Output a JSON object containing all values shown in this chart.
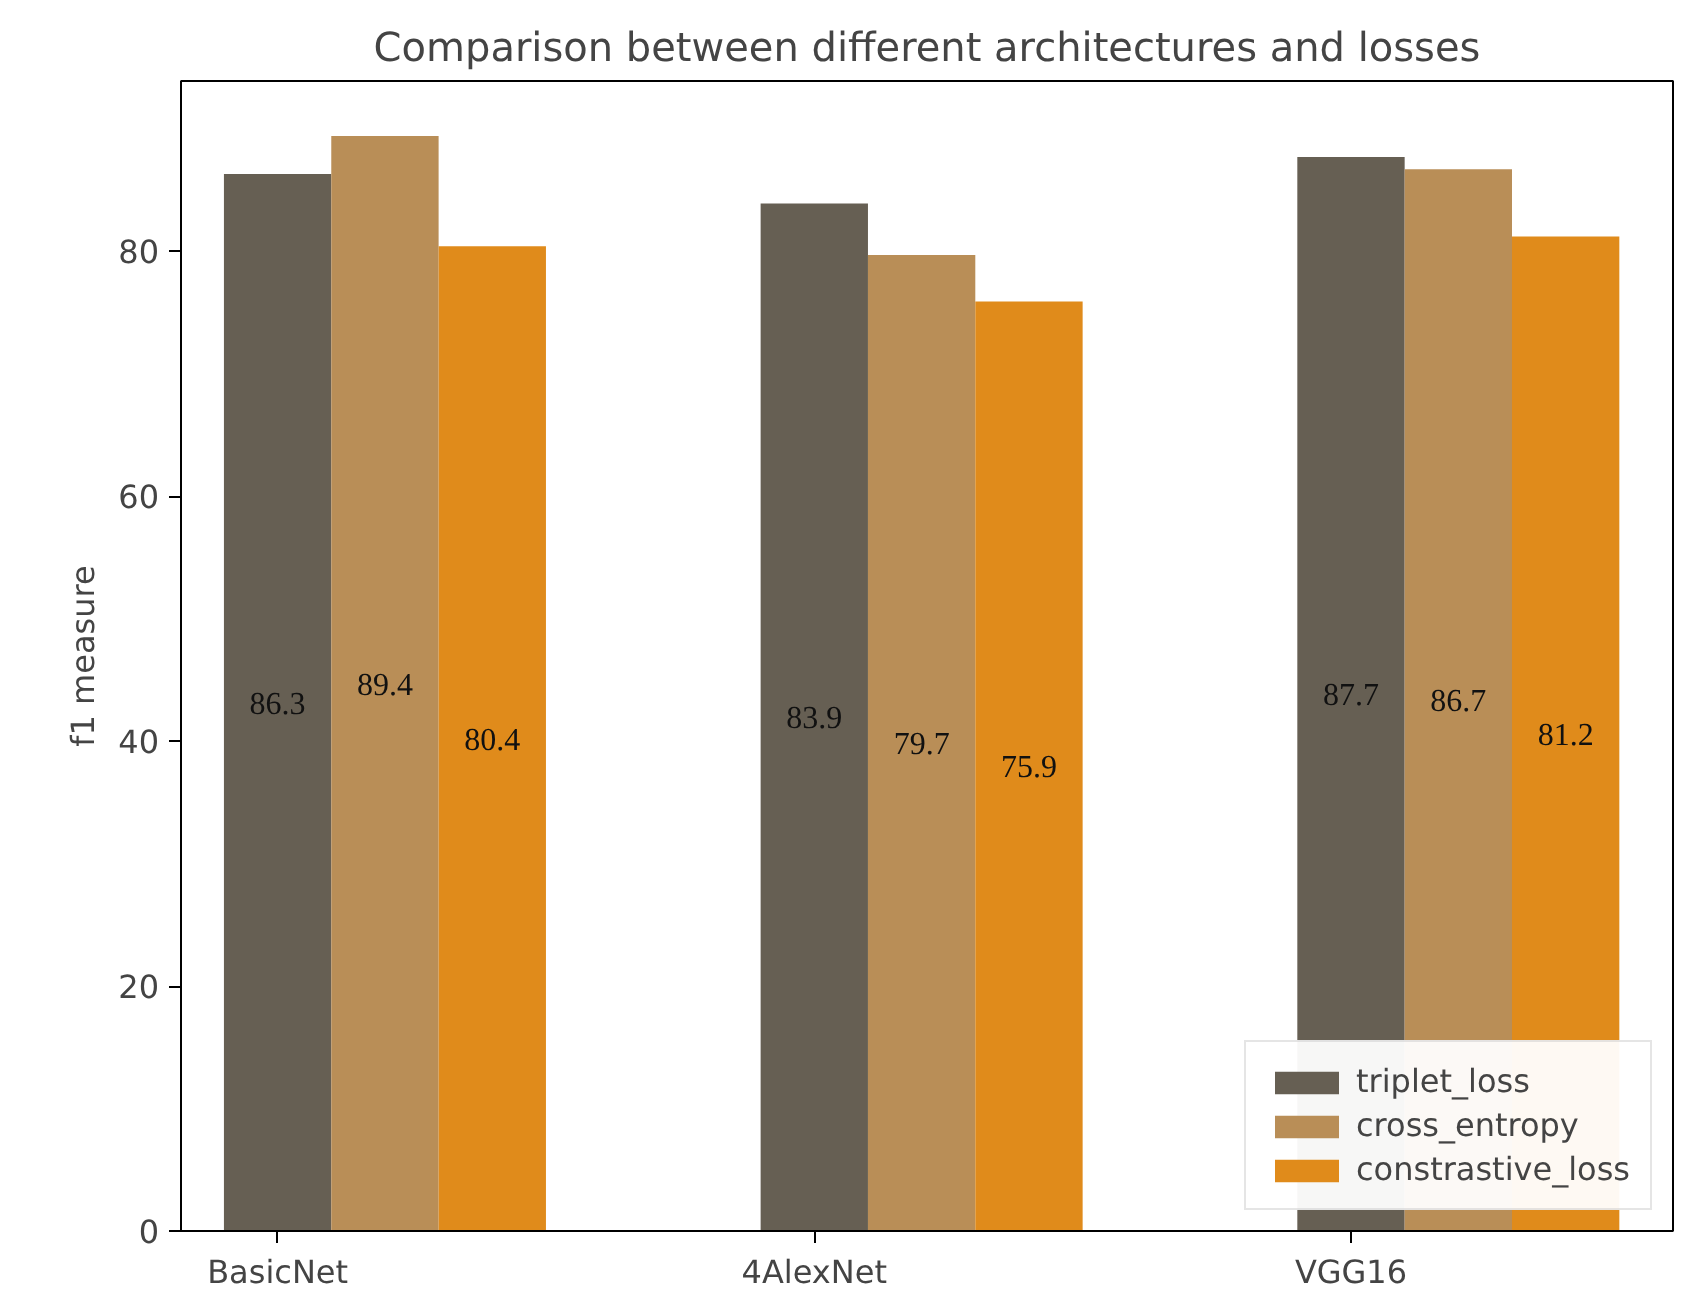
{
  "chart_data": {
    "type": "bar",
    "title": "Comparison between different architectures and losses",
    "ylabel": "f1 measure",
    "categories": [
      "BasicNet",
      "4AlexNet",
      "VGG16"
    ],
    "series": [
      {
        "name": "triplet_loss",
        "color": "#665f53",
        "values": [
          86.3,
          83.9,
          87.7
        ]
      },
      {
        "name": "cross_entropy",
        "color": "#b98e57",
        "values": [
          89.4,
          79.7,
          86.7
        ]
      },
      {
        "name": "constrastive_loss",
        "color": "#e08b1b",
        "values": [
          80.4,
          75.9,
          81.2
        ]
      }
    ],
    "ylim": [
      0,
      93.9
    ],
    "yticks": [
      0,
      20,
      40,
      60,
      80
    ],
    "data_labels": true,
    "legend": "bottom right",
    "grid": false
  }
}
